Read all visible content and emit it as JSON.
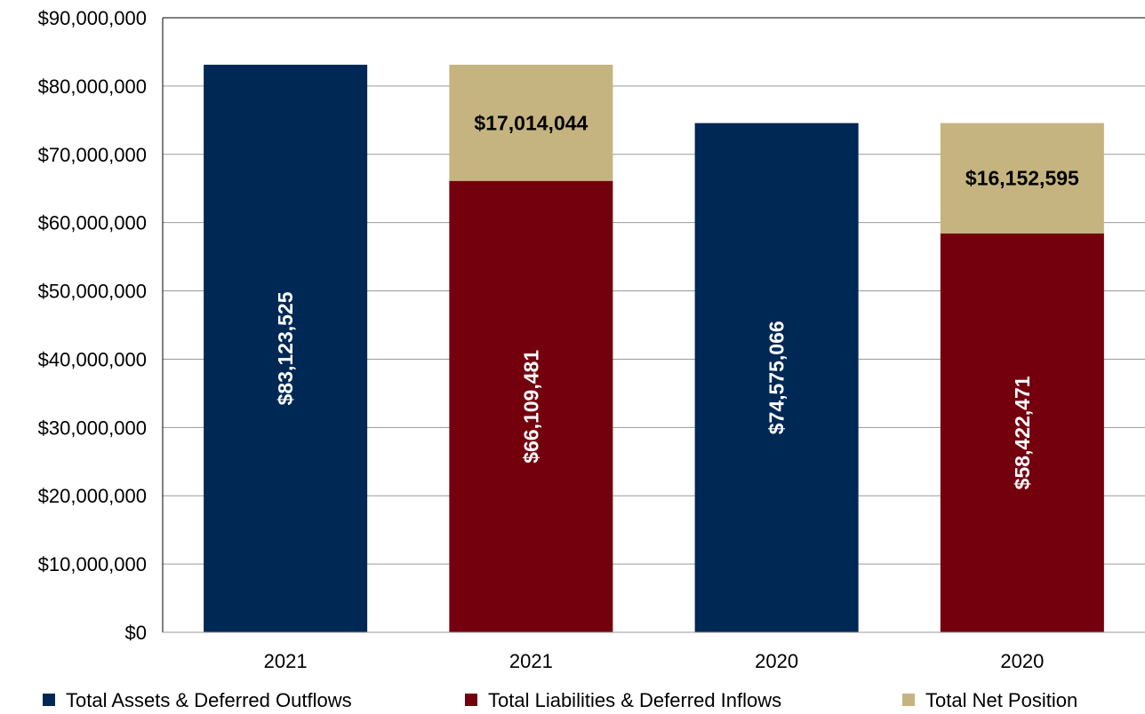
{
  "chart_data": {
    "type": "bar",
    "stacked": true,
    "ylim": [
      0,
      90000000
    ],
    "ytick_step": 10000000,
    "ytick_labels": [
      "$0",
      "$10,000,000",
      "$20,000,000",
      "$30,000,000",
      "$40,000,000",
      "$50,000,000",
      "$60,000,000",
      "$70,000,000",
      "$80,000,000",
      "$90,000,000"
    ],
    "grid": true,
    "legend_position": "bottom",
    "categories": [
      "2021",
      "2021",
      "2020",
      "2020"
    ],
    "series": [
      {
        "name": "Total Assets & Deferred Outflows",
        "color": "#002855",
        "label_color": "#ffffff",
        "values": [
          83123525,
          0,
          74575066,
          0
        ],
        "labels": [
          "$83,123,525",
          "",
          "$74,575,066",
          ""
        ]
      },
      {
        "name": "Total Liabilities & Deferred Inflows",
        "color": "#74000e",
        "label_color": "#ffffff",
        "values": [
          0,
          66109481,
          0,
          58422471
        ],
        "labels": [
          "",
          "$66,109,481",
          "",
          "$58,422,471"
        ]
      },
      {
        "name": "Total Net Position",
        "color": "#c5b47f",
        "label_color": "#000000",
        "values": [
          0,
          17014044,
          0,
          16152595
        ],
        "labels": [
          "",
          "$17,014,044",
          "",
          "$16,152,595"
        ]
      }
    ]
  }
}
